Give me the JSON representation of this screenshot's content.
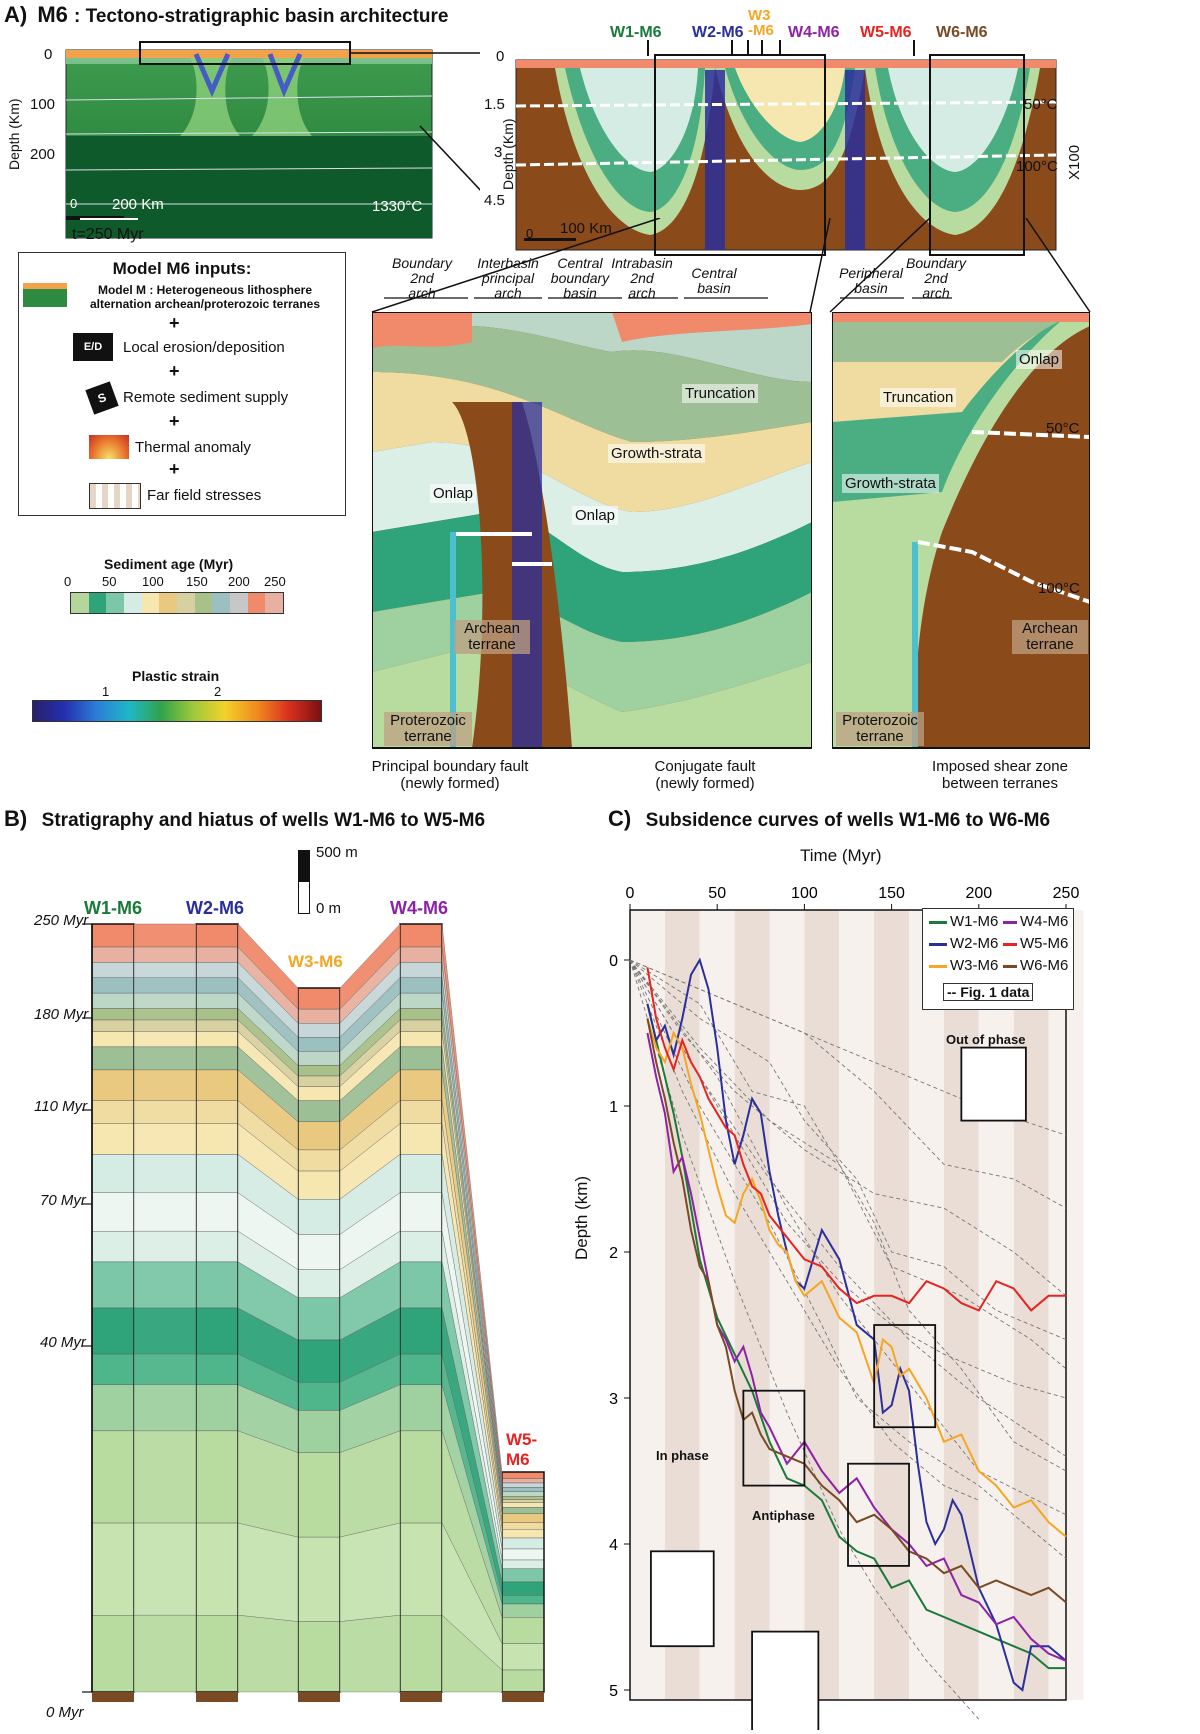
{
  "panel_a": {
    "letter": "A)",
    "title_model": "M6",
    "title_rest": ": Tectono-stratigraphic basin architecture",
    "time_label": "t=250 Myr",
    "left_section": {
      "y_axis_label": "Depth (Km)",
      "y_ticks": [
        "0",
        "100",
        "200"
      ],
      "scale_bar": "200 Km",
      "scale_zero": "0",
      "isotherm": "1330°C"
    },
    "zoom_section": {
      "y_axis_label": "Depth (Km)",
      "y_ticks": [
        "0",
        "1.5",
        "3",
        "4.5"
      ],
      "scale_bar": "100 Km",
      "scale_zero": "0",
      "isotherms": [
        "50°C",
        "100°C"
      ],
      "vertical_exaggeration": "X100",
      "wells": [
        {
          "name": "W1-M6",
          "color": "#1a7a3a"
        },
        {
          "name": "W2-M6",
          "color": "#2a2f9c"
        },
        {
          "name": "W3\n-M6",
          "color": "#f5a623"
        },
        {
          "name": "W4-M6",
          "color": "#8e22a6"
        },
        {
          "name": "W5-M6",
          "color": "#e52421"
        },
        {
          "name": "W6-M6",
          "color": "#7a4a25"
        }
      ]
    },
    "inputs": {
      "title": "Model M6 inputs:",
      "items": [
        "Model M : Heterogeneous lithosphere alternation archean/proterozoic terranes",
        "Local erosion/deposition",
        "Remote sediment supply",
        "Thermal anomaly",
        "Far field stresses"
      ],
      "plus": "+",
      "ed_icon": "E/D",
      "s_icon": "S"
    },
    "sediment_legend": {
      "title": "Sediment age  (Myr)",
      "ticks": [
        "0",
        "50",
        "100",
        "150",
        "200",
        "250"
      ],
      "colors": [
        "#b5d69a",
        "#2fa37a",
        "#7cc7a8",
        "#d5ece4",
        "#f6e6b0",
        "#e9c980",
        "#d7d0a0",
        "#a8c08a",
        "#9cbfc0",
        "#c7c7c7",
        "#f08a6a",
        "#e8b0a0"
      ]
    },
    "strain_legend": {
      "title": "Plastic strain",
      "ticks": [
        "1",
        "2"
      ]
    },
    "detail_labels": {
      "arches": [
        {
          "l1": "Boundary",
          "l2": "2nd",
          "l3": "arch"
        },
        {
          "l1": "Interbasin",
          "l2": "principal",
          "l3": "arch"
        },
        {
          "l1": "Central",
          "l2": "boundary",
          "l3": "basin"
        },
        {
          "l1": "Intrabasin",
          "l2": "2nd",
          "l3": "arch"
        },
        {
          "l1": "Central",
          "l2": "basin",
          "l3": ""
        },
        {
          "l1": "Peripheral",
          "l2": "basin",
          "l3": ""
        },
        {
          "l1": "Boundary",
          "l2": "2nd",
          "l3": "arch"
        }
      ],
      "onlap": "Onlap",
      "truncation": "Truncation",
      "growth_strata": "Growth-strata",
      "archean": "Archean terrane",
      "proterozoic": "Proterozoic terrane",
      "iso_50": "50°C",
      "iso_100": "100°C",
      "principal_fault": "Principal boundary fault",
      "principal_fault_sub": "(newly formed)",
      "conjugate_fault": "Conjugate fault",
      "conjugate_fault_sub": "(newly formed)",
      "shear_zone": "Imposed shear zone",
      "shear_zone_sub": "between terranes"
    }
  },
  "panel_b": {
    "letter": "B)",
    "title": "Stratigraphy and hiatus of wells W1-M6 to W5-M6",
    "scale_top": "500 m",
    "scale_bottom": "0 m",
    "age_labels": [
      "250 Myr",
      "180 Myr",
      "110 Myr",
      "70 Myr",
      "40 Myr",
      "0 Myr"
    ],
    "wells": [
      {
        "name": "W1-M6",
        "color": "#1a7a3a"
      },
      {
        "name": "W2-M6",
        "color": "#2a2f9c"
      },
      {
        "name": "W3-M6",
        "color": "#f5a623"
      },
      {
        "name": "W4-M6",
        "color": "#8e22a6"
      },
      {
        "name": "W5-\nM6",
        "color": "#e52421"
      }
    ]
  },
  "panel_c": {
    "letter": "C)",
    "title": "Subsidence curves of wells W1-M6 to W6-M6",
    "chart_data": {
      "type": "line",
      "title": "Subsidence curves of wells W1-M6 to W6-M6",
      "xlabel": "Time (Myr)",
      "ylabel": "Depth (km)",
      "xlim": [
        0,
        250
      ],
      "ylim": [
        0,
        5
      ],
      "y_inverted": true,
      "x_ticks": [
        "0",
        "50",
        "100",
        "150",
        "200",
        "250"
      ],
      "y_ticks": [
        "0",
        "1",
        "2",
        "3",
        "4",
        "5"
      ],
      "legend": [
        "W1-M6",
        "W2-M6",
        "W3-M6",
        "W4-M6",
        "W5-M6",
        "W6-M6",
        "-- Fig. 1 data"
      ],
      "annotations": [
        "Out of phase",
        "In phase",
        "Antiphase"
      ],
      "series": [
        {
          "name": "W1-M6",
          "color": "#1a7a3a",
          "x": [
            10,
            15,
            20,
            25,
            30,
            35,
            40,
            50,
            60,
            70,
            80,
            90,
            100,
            110,
            120,
            130,
            140,
            150,
            160,
            170,
            180,
            190,
            200,
            210,
            220,
            230,
            240,
            250
          ],
          "y": [
            0.3,
            0.55,
            0.8,
            1.05,
            1.35,
            1.7,
            2.05,
            2.45,
            2.7,
            2.95,
            3.3,
            3.55,
            3.6,
            3.7,
            3.95,
            4.05,
            4.1,
            4.3,
            4.25,
            4.45,
            4.5,
            4.55,
            4.6,
            4.65,
            4.7,
            4.75,
            4.85,
            4.85
          ]
        },
        {
          "name": "W2-M6",
          "color": "#2a2f9c",
          "x": [
            10,
            15,
            20,
            25,
            30,
            35,
            40,
            45,
            50,
            55,
            60,
            65,
            70,
            75,
            80,
            85,
            90,
            95,
            100,
            110,
            120,
            130,
            140,
            145,
            150,
            155,
            160,
            165,
            170,
            175,
            180,
            185,
            190,
            200,
            210,
            220,
            225,
            230,
            240,
            250
          ],
          "y": [
            0.3,
            0.55,
            0.45,
            0.65,
            0.4,
            0.1,
            0.0,
            0.2,
            0.6,
            1.1,
            1.4,
            1.2,
            0.95,
            1.05,
            1.45,
            1.75,
            2.0,
            2.2,
            2.25,
            1.85,
            2.05,
            2.5,
            2.6,
            3.1,
            3.05,
            2.8,
            2.95,
            3.45,
            3.85,
            4.0,
            3.9,
            3.7,
            3.8,
            4.3,
            4.55,
            4.95,
            5.0,
            4.7,
            4.7,
            4.8
          ]
        },
        {
          "name": "W3-M6",
          "color": "#f5a623",
          "x": [
            10,
            15,
            20,
            25,
            30,
            35,
            40,
            45,
            50,
            55,
            60,
            65,
            70,
            75,
            80,
            85,
            90,
            95,
            100,
            110,
            120,
            130,
            140,
            145,
            150,
            155,
            160,
            170,
            180,
            190,
            200,
            210,
            220,
            230,
            240,
            250
          ],
          "y": [
            0.4,
            0.6,
            0.7,
            0.5,
            0.6,
            0.85,
            1.05,
            1.3,
            1.55,
            1.75,
            1.8,
            1.6,
            1.5,
            1.65,
            1.85,
            1.95,
            2.0,
            2.2,
            2.3,
            2.2,
            2.45,
            2.55,
            2.9,
            2.6,
            2.65,
            2.85,
            2.8,
            3.0,
            3.3,
            3.25,
            3.5,
            3.6,
            3.75,
            3.7,
            3.85,
            3.95
          ]
        },
        {
          "name": "W4-M6",
          "color": "#8e22a6",
          "x": [
            10,
            15,
            20,
            25,
            30,
            35,
            40,
            45,
            50,
            55,
            60,
            65,
            70,
            75,
            80,
            90,
            100,
            110,
            120,
            130,
            140,
            150,
            160,
            170,
            180,
            190,
            200,
            210,
            220,
            230,
            240,
            250
          ],
          "y": [
            0.5,
            0.8,
            1.05,
            1.45,
            1.35,
            1.6,
            1.9,
            2.2,
            2.5,
            2.6,
            2.75,
            2.65,
            2.85,
            3.1,
            3.2,
            3.45,
            3.3,
            3.5,
            3.65,
            3.55,
            3.75,
            3.9,
            4.0,
            4.15,
            4.1,
            4.35,
            4.4,
            4.55,
            4.5,
            4.65,
            4.75,
            4.8
          ]
        },
        {
          "name": "W5-M6",
          "color": "#e52421",
          "x": [
            10,
            15,
            20,
            25,
            30,
            35,
            40,
            45,
            50,
            55,
            60,
            65,
            70,
            75,
            80,
            90,
            100,
            110,
            120,
            130,
            140,
            150,
            160,
            170,
            180,
            190,
            200,
            210,
            220,
            230,
            240,
            250
          ],
          "y": [
            0.05,
            0.4,
            0.6,
            0.75,
            0.55,
            0.7,
            0.8,
            0.95,
            1.05,
            1.15,
            1.2,
            1.4,
            1.55,
            1.6,
            1.75,
            1.9,
            2.05,
            2.1,
            2.25,
            2.35,
            2.3,
            2.3,
            2.35,
            2.2,
            2.25,
            2.35,
            2.4,
            2.2,
            2.25,
            2.4,
            2.3,
            2.3
          ]
        },
        {
          "name": "W6-M6",
          "color": "#7a4a25",
          "x": [
            10,
            15,
            20,
            25,
            30,
            35,
            40,
            45,
            50,
            55,
            60,
            65,
            70,
            75,
            80,
            90,
            100,
            110,
            120,
            130,
            140,
            150,
            160,
            170,
            180,
            190,
            200,
            210,
            220,
            230,
            240,
            250
          ],
          "y": [
            0.4,
            0.7,
            0.95,
            1.25,
            1.5,
            1.85,
            2.1,
            2.2,
            2.5,
            2.65,
            2.95,
            3.15,
            3.1,
            3.25,
            3.35,
            3.4,
            3.45,
            3.6,
            3.7,
            3.85,
            3.8,
            3.9,
            4.05,
            4.1,
            4.2,
            4.15,
            4.3,
            4.25,
            4.3,
            4.35,
            4.3,
            4.4
          ]
        }
      ],
      "reference_series": [
        {
          "x": [
            0,
            40,
            80,
            120,
            160,
            200,
            250
          ],
          "y": [
            0,
            0.2,
            0.4,
            0.6,
            0.8,
            1.0,
            1.2
          ]
        },
        {
          "x": [
            0,
            30,
            60,
            100,
            140,
            180,
            220,
            250
          ],
          "y": [
            0,
            0.5,
            0.9,
            1.3,
            1.6,
            1.7,
            2.0,
            2.3
          ]
        },
        {
          "x": [
            0,
            30,
            60,
            90,
            120,
            150,
            180,
            220,
            250
          ],
          "y": [
            0,
            0.6,
            1.2,
            1.8,
            2.2,
            2.5,
            2.7,
            2.9,
            3.0
          ]
        },
        {
          "x": [
            0,
            40,
            80,
            120,
            160,
            200,
            250
          ],
          "y": [
            0,
            0.8,
            1.5,
            2.1,
            2.6,
            3.0,
            3.4
          ]
        },
        {
          "x": [
            0,
            40,
            80,
            110,
            130,
            160,
            200,
            250
          ],
          "y": [
            0,
            1.0,
            1.8,
            2.5,
            3.0,
            3.3,
            3.6,
            4.1
          ]
        },
        {
          "x": [
            0,
            40,
            70,
            100,
            140,
            160,
            190,
            220,
            250
          ],
          "y": [
            0,
            0.3,
            0.9,
            1.0,
            1.8,
            2.4,
            2.8,
            3.3,
            3.5
          ]
        },
        {
          "x": [
            0,
            30,
            60,
            90,
            120,
            140,
            170,
            200
          ],
          "y": [
            0,
            1.2,
            2.2,
            3.1,
            3.9,
            4.3,
            4.8,
            5.2
          ]
        },
        {
          "x": [
            0,
            40,
            80,
            100,
            130,
            150,
            180,
            210,
            250
          ],
          "y": [
            0,
            0.4,
            0.7,
            1.1,
            1.5,
            2.0,
            2.1,
            2.4,
            2.6
          ]
        },
        {
          "x": [
            0,
            60,
            100,
            140,
            180,
            220,
            250
          ],
          "y": [
            0,
            0.3,
            0.5,
            0.9,
            1.4,
            1.5,
            1.7
          ]
        },
        {
          "x": [
            0,
            50,
            90,
            120,
            160,
            200,
            250
          ],
          "y": [
            0,
            0.8,
            1.7,
            2.3,
            2.9,
            3.5,
            3.8
          ]
        },
        {
          "x": [
            0,
            30,
            60,
            90,
            120,
            150,
            180,
            200
          ],
          "y": [
            0,
            0.9,
            1.6,
            2.2,
            2.8,
            3.3,
            3.6,
            3.7
          ]
        },
        {
          "x": [
            0,
            40,
            80,
            120,
            150,
            190,
            230,
            250
          ],
          "y": [
            0,
            0.6,
            1.1,
            1.4,
            2.1,
            2.3,
            2.6,
            2.8
          ]
        }
      ]
    }
  }
}
